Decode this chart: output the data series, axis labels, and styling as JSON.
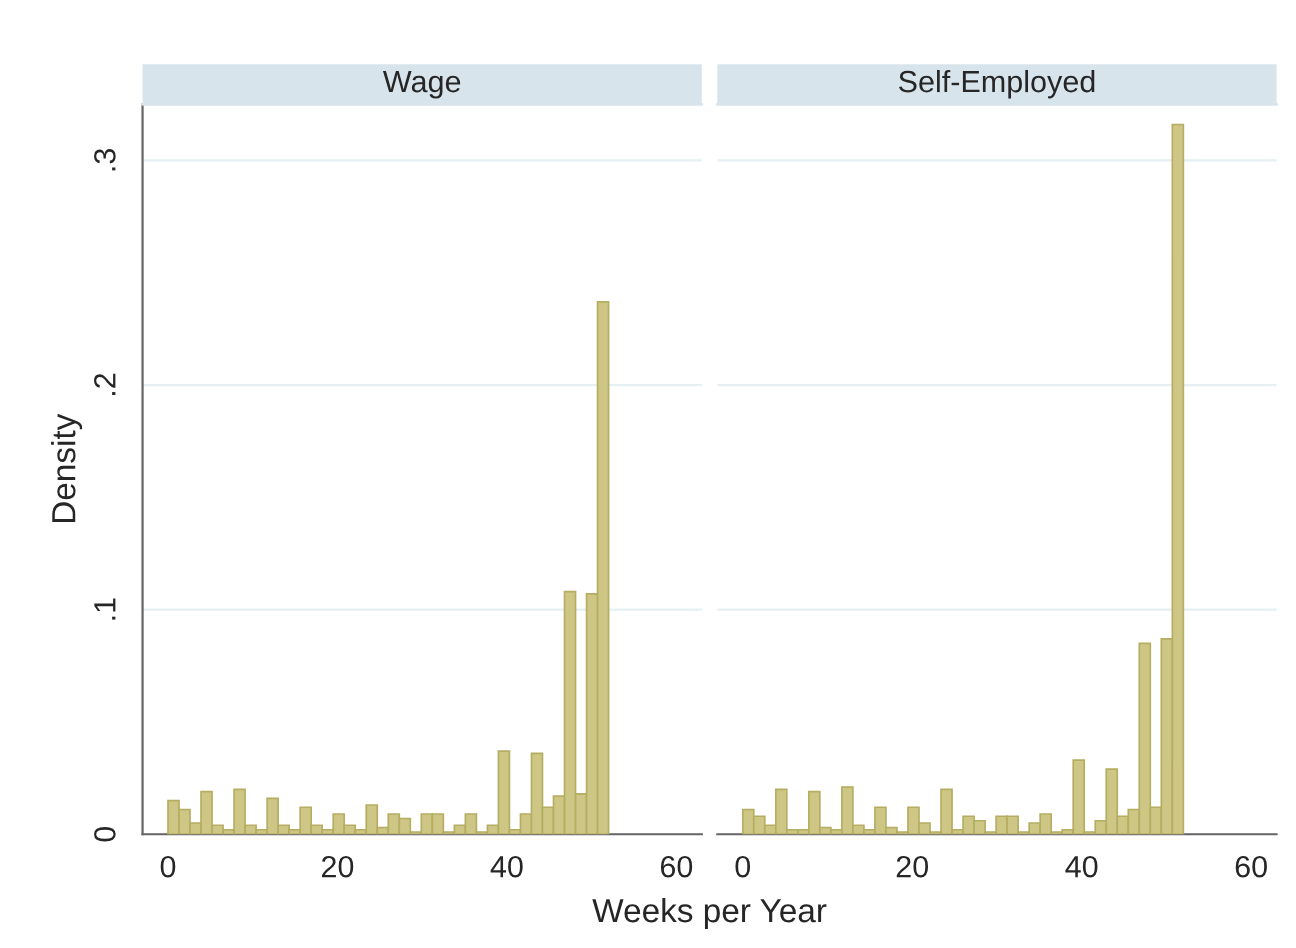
{
  "chart_data": [
    {
      "type": "histogram",
      "title": "Wage",
      "xlabel": "Weeks per Year",
      "ylabel": "Density",
      "color": "#cdc684",
      "bins": [
        0,
        1.3,
        2.6,
        3.9,
        5.2,
        6.5,
        7.8,
        9.1,
        10.4,
        11.7,
        13,
        14.3,
        15.6,
        16.9,
        18.2,
        19.5,
        20.8,
        22.1,
        23.4,
        24.7,
        26,
        27.3,
        28.6,
        29.9,
        31.2,
        32.5,
        33.8,
        35.1,
        36.4,
        37.7,
        39,
        40.3,
        41.6,
        42.9,
        44.2,
        45.5,
        46.8,
        48.1,
        49.4,
        50.7,
        52
      ],
      "values": [
        0.015,
        0.011,
        0.005,
        0.019,
        0.004,
        0.002,
        0.02,
        0.004,
        0.002,
        0.016,
        0.004,
        0.002,
        0.012,
        0.004,
        0.002,
        0.009,
        0.004,
        0.002,
        0.013,
        0.003,
        0.009,
        0.007,
        0.001,
        0.009,
        0.009,
        0.001,
        0.004,
        0.009,
        0.001,
        0.004,
        0.037,
        0.002,
        0.009,
        0.036,
        0.012,
        0.017,
        0.108,
        0.018,
        0.107,
        0.237
      ],
      "xlim": [
        -3,
        63
      ],
      "xticks": [
        0,
        20,
        40,
        60
      ],
      "ylim": [
        0,
        0.325
      ],
      "yticks": [
        {
          "value": 0,
          "label": "0"
        },
        {
          "value": 0.1,
          "label": ".1"
        },
        {
          "value": 0.2,
          "label": ".2"
        },
        {
          "value": 0.3,
          "label": ".3"
        }
      ],
      "grid": "y"
    },
    {
      "type": "histogram",
      "title": "Self-Employed",
      "color": "#cdc684",
      "bins": [
        0,
        1.3,
        2.6,
        3.9,
        5.2,
        6.5,
        7.8,
        9.1,
        10.4,
        11.7,
        13,
        14.3,
        15.6,
        16.9,
        18.2,
        19.5,
        20.8,
        22.1,
        23.4,
        24.7,
        26,
        27.3,
        28.6,
        29.9,
        31.2,
        32.5,
        33.8,
        35.1,
        36.4,
        37.7,
        39,
        40.3,
        41.6,
        42.9,
        44.2,
        45.5,
        46.8,
        48.1,
        49.4,
        50.7,
        52
      ],
      "values": [
        0.011,
        0.008,
        0.004,
        0.02,
        0.002,
        0.002,
        0.019,
        0.003,
        0.002,
        0.021,
        0.004,
        0.002,
        0.012,
        0.003,
        0.001,
        0.012,
        0.005,
        0.001,
        0.02,
        0.002,
        0.008,
        0.006,
        0.001,
        0.008,
        0.008,
        0.001,
        0.005,
        0.009,
        0.001,
        0.002,
        0.033,
        0.001,
        0.006,
        0.029,
        0.008,
        0.011,
        0.085,
        0.012,
        0.087,
        0.316
      ],
      "xlim": [
        -3,
        63
      ],
      "xticks": [
        0,
        20,
        40,
        60
      ],
      "ylim": [
        0,
        0.325
      ],
      "yticks": [
        {
          "value": 0,
          "label": null
        },
        {
          "value": 0.1,
          "label": null
        },
        {
          "value": 0.2,
          "label": null
        },
        {
          "value": 0.3,
          "label": null
        }
      ],
      "grid": "y",
      "tick_labels": "x"
    }
  ]
}
